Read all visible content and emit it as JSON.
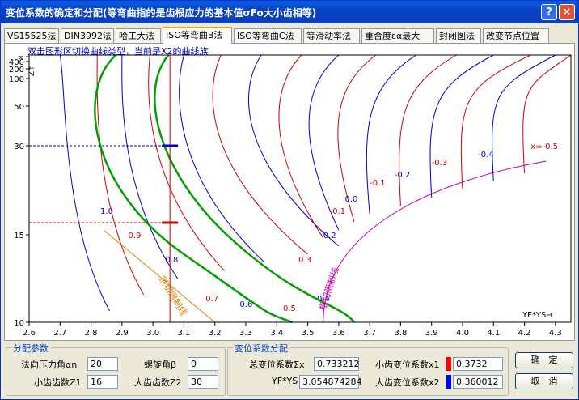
{
  "window": {
    "title": "变位系数的确定和分配(等弯曲指的是齿根应力的基本值σFo大小齿相等)",
    "help_label": "?",
    "close_label": "✕"
  },
  "tabs": [
    {
      "label": "VS15525法"
    },
    {
      "label": "DIN3992法"
    },
    {
      "label": "哈工大法"
    },
    {
      "label": "ISO等弯曲B法",
      "active": true
    },
    {
      "label": "ISO等弯曲C法"
    },
    {
      "label": "等滑动率法"
    },
    {
      "label": "重合度εα最大"
    },
    {
      "label": "封闭图法"
    },
    {
      "label": "改变节点位置"
    }
  ],
  "plot": {
    "hint": "双击图形区切换曲线类型，当前是X2的曲线族",
    "y_axis_label": "Z↑",
    "x_axis_label": "YF*YS→",
    "line_label_limit": "顶切限制线",
    "line_label_undercut": "根切限制线",
    "colors": {
      "x_pos": "#d00000",
      "x_neg_blue": "#0000d0",
      "green": "#00a000",
      "orange": "#e08000",
      "magenta": "#c000a0",
      "selection_v": "#d00000",
      "marker_blue": "#0000c0"
    }
  },
  "chart_data": {
    "type": "line",
    "x_ticks": [
      "2.6",
      "2.7",
      "2.8",
      "2.9",
      "3.0",
      "3.1",
      "3.2",
      "3.3",
      "3.4",
      "3.5",
      "3.6",
      "3.7",
      "3.8",
      "3.9",
      "4.0",
      "4.1",
      "4.2",
      "4.3"
    ],
    "y_ticks": [
      "∞",
      "400",
      "200",
      "100",
      "50",
      "30",
      "15",
      "10"
    ],
    "xlim": [
      2.6,
      4.35
    ],
    "ylabel": "Z",
    "xlabel": "YF*YS",
    "series_labels": [
      "1.0",
      "0.9",
      "0.8",
      "0.7",
      "0.6",
      "0.5",
      "0.4",
      "0.3",
      "0.2",
      "0.1",
      "0.0",
      "-0.1",
      "-0.2",
      "-0.3",
      "-0.4",
      "x=-0.5"
    ],
    "selection": {
      "x": 3.054874284,
      "z1": 16,
      "z2": 30
    }
  },
  "alloc": {
    "group_label": "分配参数",
    "pressure_angle_label": "法向压力角αn",
    "pressure_angle_value": "20",
    "helix_angle_label": "螺旋角β",
    "helix_angle_value": "0",
    "z1_label": "小齿齿数Z1",
    "z1_value": "16",
    "z2_label": "大齿齿数Z2",
    "z2_value": "30"
  },
  "shift": {
    "group_label": "变位系数分配",
    "total_label": "总变位系数Σx",
    "total_value": "0.733212",
    "yfys_label": "YF*YS",
    "yfys_value": "3.054874284",
    "x1_label": "小齿变位系数x1",
    "x1_value": "0.3732",
    "x1_color": "#ff0000",
    "x2_label": "大齿变位系数x2",
    "x2_value": "0.360012",
    "x2_color": "#0000ff"
  },
  "buttons": {
    "ok": "确　定",
    "cancel": "取　消"
  }
}
